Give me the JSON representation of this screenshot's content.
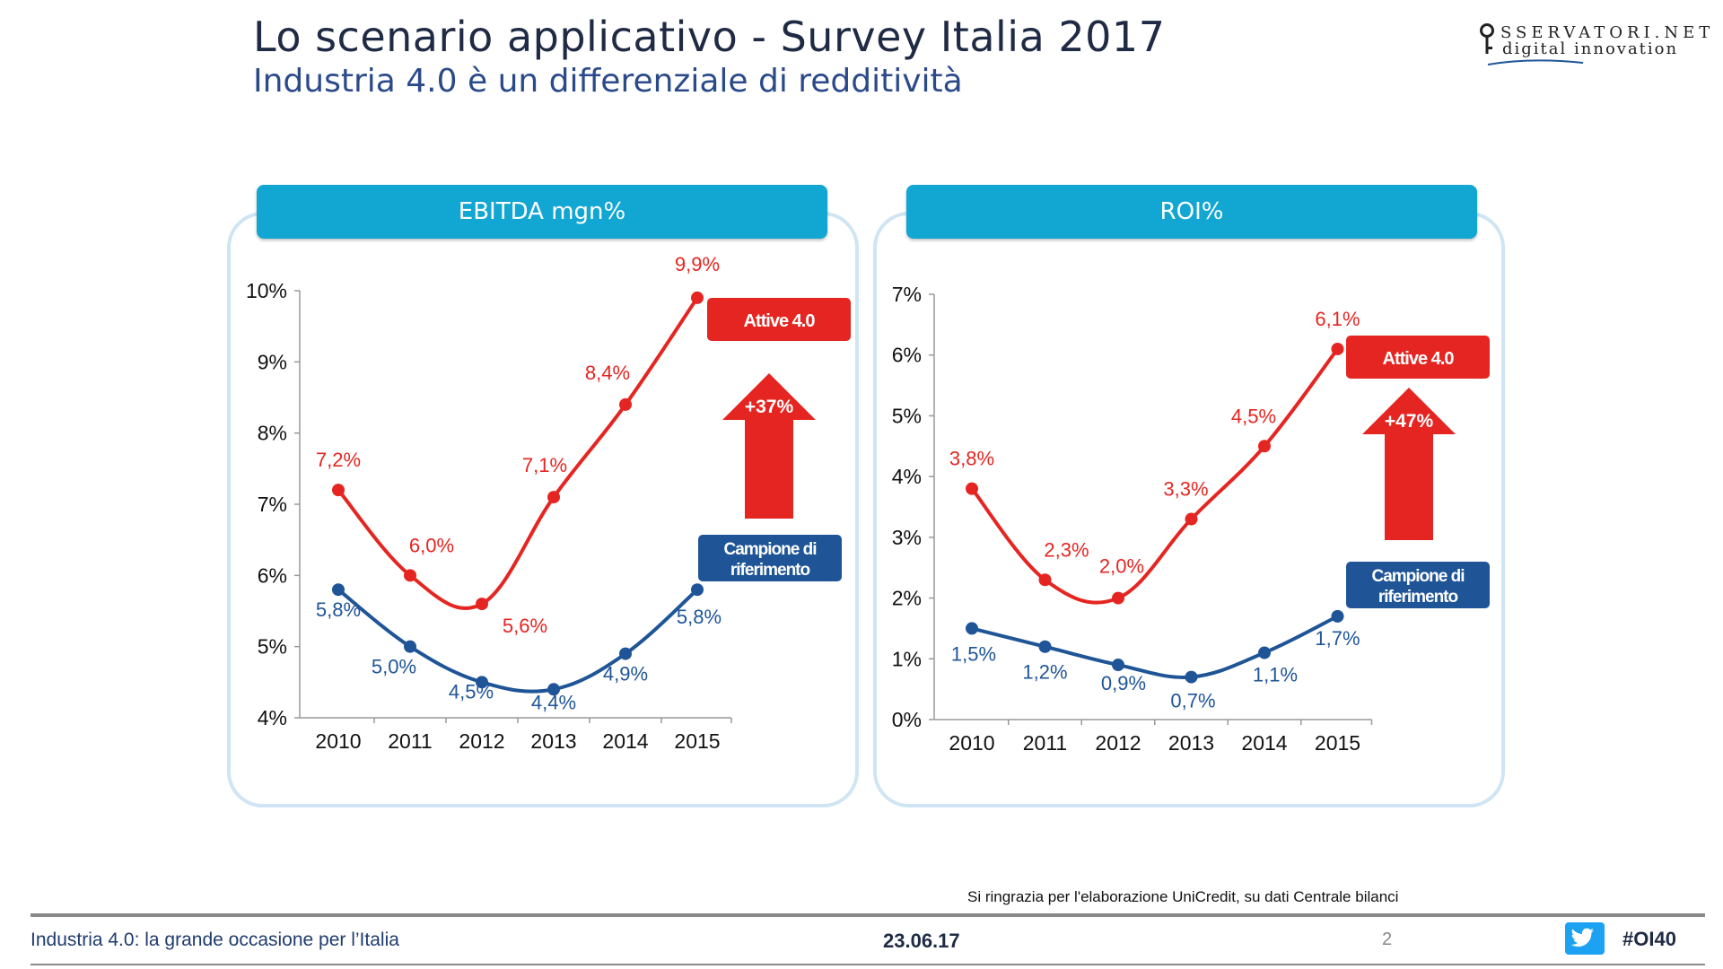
{
  "header": {
    "title": "Lo scenario applicativo - Survey Italia 2017",
    "subtitle": "Industria 4.0 è un differenziale di redditività"
  },
  "logo": {
    "line1": "SSERVATORI.NET",
    "line2": "digital innovation"
  },
  "colors": {
    "red": "#e52521",
    "blue": "#1f5597",
    "header": "#12a6d2",
    "panel_border": "#cfe5f3"
  },
  "chart_data": [
    {
      "type": "line",
      "title": "EBITDA mgn%",
      "categories": [
        "2010",
        "2011",
        "2012",
        "2013",
        "2014",
        "2015"
      ],
      "yticks": [
        "4%",
        "5%",
        "6%",
        "7%",
        "8%",
        "9%",
        "10%"
      ],
      "ylim": [
        4,
        10
      ],
      "series": [
        {
          "name": "Attive 4.0",
          "color": "#e52521",
          "values": [
            7.2,
            6.0,
            5.6,
            7.1,
            8.4,
            9.9
          ],
          "labels": [
            "7,2%",
            "6,0%",
            "5,6%",
            "7,1%",
            "8,4%",
            "9,9%"
          ]
        },
        {
          "name": "Campione di riferimento",
          "color": "#1f5597",
          "values": [
            5.8,
            5.0,
            4.5,
            4.4,
            4.9,
            5.8
          ],
          "labels": [
            "5,8%",
            "5,0%",
            "4,5%",
            "4,4%",
            "4,9%",
            "5,8%"
          ]
        }
      ],
      "legend": {
        "red_label": "Attive 4.0",
        "blue_label_line1": "Campione di",
        "blue_label_line2": "riferimento"
      },
      "arrow_label": "+37%"
    },
    {
      "type": "line",
      "title": "ROI%",
      "categories": [
        "2010",
        "2011",
        "2012",
        "2013",
        "2014",
        "2015"
      ],
      "yticks": [
        "0%",
        "1%",
        "2%",
        "3%",
        "4%",
        "5%",
        "6%",
        "7%"
      ],
      "ylim": [
        0,
        7
      ],
      "series": [
        {
          "name": "Attive 4.0",
          "color": "#e52521",
          "values": [
            3.8,
            2.3,
            2.0,
            3.3,
            4.5,
            6.1
          ],
          "labels": [
            "3,8%",
            "2,3%",
            "2,0%",
            "3,3%",
            "4,5%",
            "6,1%"
          ]
        },
        {
          "name": "Campione di riferimento",
          "color": "#1f5597",
          "values": [
            1.5,
            1.2,
            0.9,
            0.7,
            1.1,
            1.7
          ],
          "labels": [
            "1,5%",
            "1,2%",
            "0,9%",
            "0,7%",
            "1,1%",
            "1,7%"
          ]
        }
      ],
      "legend": {
        "red_label": "Attive 4.0",
        "blue_label_line1": "Campione di",
        "blue_label_line2": "riferimento"
      },
      "arrow_label": "+47%"
    }
  ],
  "source_note": "Si ringrazia per l'elaborazione UniCredit, su dati Centrale bilanci",
  "footer": {
    "left": "Industria 4.0: la grande occasione per l’Italia",
    "date": "23.06.17",
    "page": "2",
    "hashtag": "#OI40"
  }
}
